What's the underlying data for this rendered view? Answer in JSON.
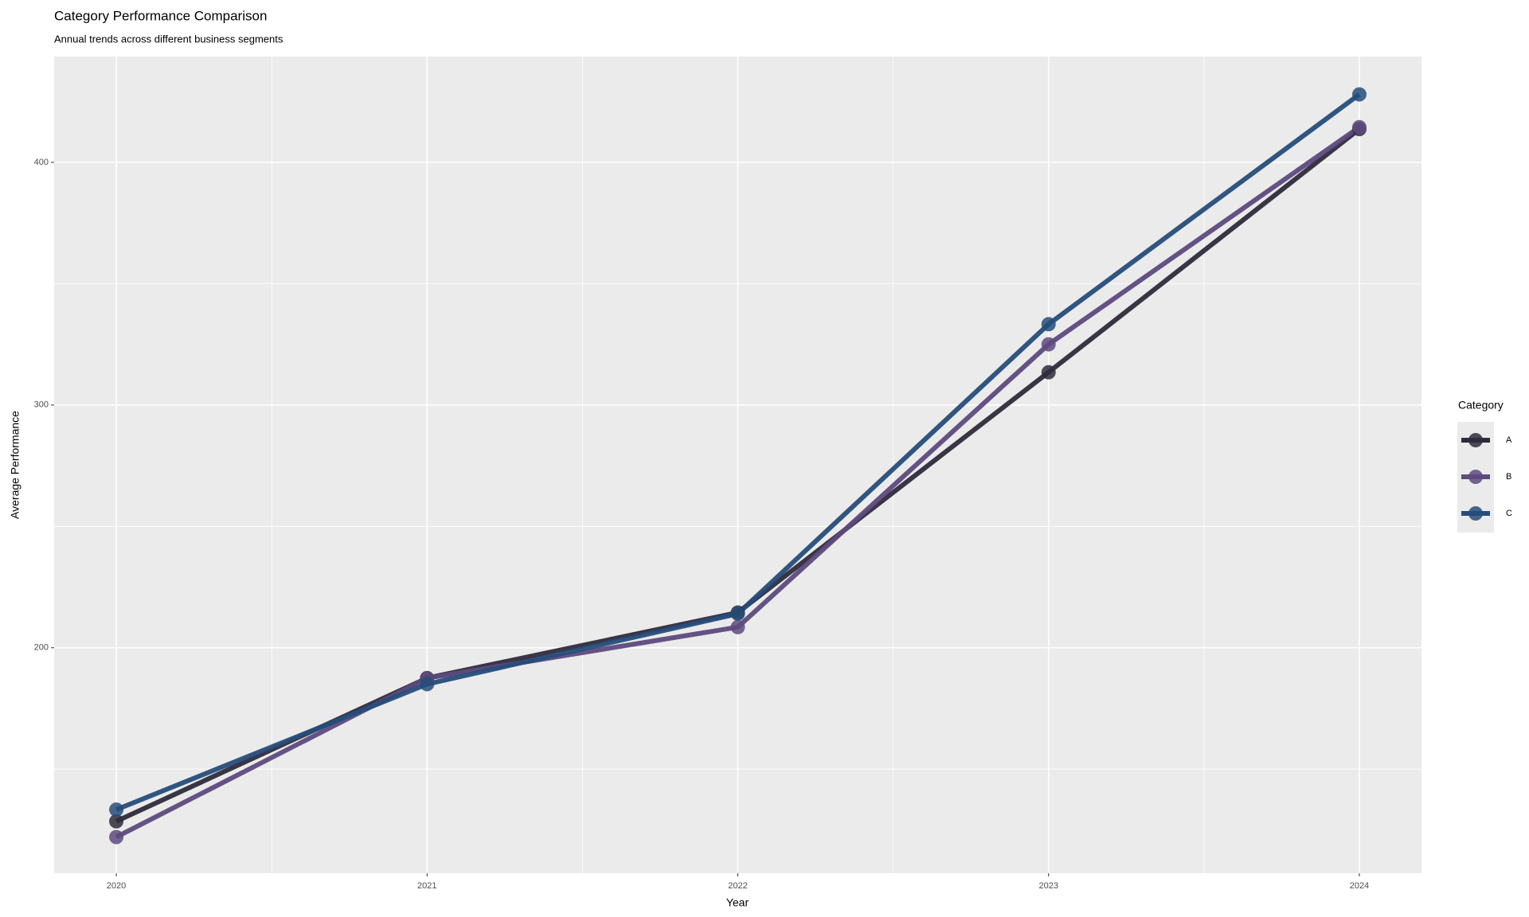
{
  "chart_data": {
    "type": "line",
    "title": "Category Performance Comparison",
    "subtitle": "Annual trends across different business segments",
    "x_label": "Year",
    "y_label": "Average Performance",
    "legend_title": "Category",
    "x": [
      2020,
      2021,
      2022,
      2023,
      2024
    ],
    "series": [
      {
        "name": "A",
        "color": "#2f2b3c",
        "values": [
          128.5,
          187.5,
          214.5,
          313.5,
          413.7
        ]
      },
      {
        "name": "B",
        "color": "#5e4a7e",
        "values": [
          122,
          187.5,
          208.5,
          325,
          414.5
        ]
      },
      {
        "name": "C",
        "color": "#264d7a",
        "values": [
          133.3,
          185,
          214,
          333.3,
          428
        ]
      }
    ],
    "xlim": [
      2019.8,
      2024.2
    ],
    "xticks": [
      2020,
      2021,
      2022,
      2023,
      2024
    ],
    "ylim": [
      107.1,
      443.6
    ],
    "yticks": [
      200,
      300,
      400
    ],
    "grid": true,
    "legend": "right"
  }
}
